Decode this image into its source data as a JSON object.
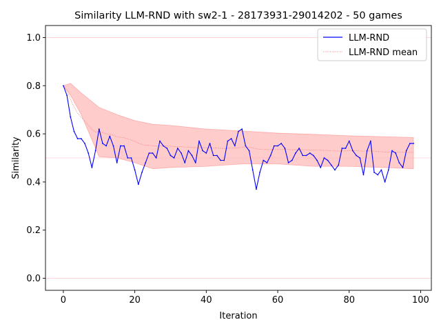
{
  "chart_data": {
    "type": "line",
    "title": "Similarity LLM-RND with sw2-1 - 28173931-29014202 - 50 games",
    "xlabel": "Iteration",
    "ylabel": "Similarity",
    "xlim": [
      -5,
      103
    ],
    "ylim": [
      -0.05,
      1.05
    ],
    "xticks": [
      0,
      20,
      40,
      60,
      80,
      100
    ],
    "yticks": [
      0.0,
      0.2,
      0.4,
      0.6,
      0.8,
      1.0
    ],
    "ytick_labels": [
      "0.0",
      "0.2",
      "0.4",
      "0.6",
      "0.8",
      "1.0"
    ],
    "reference_lines": [
      0.0,
      0.5,
      1.0
    ],
    "legend_position": "top-right",
    "colors": {
      "series": "#0000ff",
      "mean": "#f08080",
      "band": "#ff0000",
      "reference": "#ffb6c1"
    },
    "series": [
      {
        "name": "LLM-RND",
        "x": [
          0,
          1,
          2,
          3,
          4,
          5,
          6,
          7,
          8,
          9,
          10,
          11,
          12,
          13,
          14,
          15,
          16,
          17,
          18,
          19,
          20,
          21,
          22,
          23,
          24,
          25,
          26,
          27,
          28,
          29,
          30,
          31,
          32,
          33,
          34,
          35,
          36,
          37,
          38,
          39,
          40,
          41,
          42,
          43,
          44,
          45,
          46,
          47,
          48,
          49,
          50,
          51,
          52,
          53,
          54,
          55,
          56,
          57,
          58,
          59,
          60,
          61,
          62,
          63,
          64,
          65,
          66,
          67,
          68,
          69,
          70,
          71,
          72,
          73,
          74,
          75,
          76,
          77,
          78,
          79,
          80,
          81,
          82,
          83,
          84,
          85,
          86,
          87,
          88,
          89,
          90,
          91,
          92,
          93,
          94,
          95,
          96,
          97,
          98
        ],
        "values": [
          0.8,
          0.76,
          0.67,
          0.61,
          0.58,
          0.58,
          0.56,
          0.52,
          0.46,
          0.53,
          0.62,
          0.56,
          0.55,
          0.59,
          0.55,
          0.48,
          0.55,
          0.55,
          0.5,
          0.5,
          0.45,
          0.39,
          0.44,
          0.48,
          0.52,
          0.52,
          0.5,
          0.57,
          0.55,
          0.54,
          0.51,
          0.5,
          0.54,
          0.52,
          0.48,
          0.53,
          0.51,
          0.48,
          0.57,
          0.53,
          0.52,
          0.56,
          0.51,
          0.51,
          0.49,
          0.49,
          0.57,
          0.58,
          0.55,
          0.61,
          0.62,
          0.55,
          0.53,
          0.45,
          0.37,
          0.44,
          0.49,
          0.48,
          0.51,
          0.55,
          0.55,
          0.56,
          0.54,
          0.48,
          0.49,
          0.52,
          0.54,
          0.51,
          0.51,
          0.52,
          0.51,
          0.49,
          0.46,
          0.5,
          0.49,
          0.47,
          0.45,
          0.47,
          0.54,
          0.54,
          0.57,
          0.53,
          0.51,
          0.5,
          0.43,
          0.53,
          0.57,
          0.44,
          0.43,
          0.45,
          0.4,
          0.45,
          0.53,
          0.52,
          0.48,
          0.46,
          0.53,
          0.56,
          0.56
        ]
      },
      {
        "name": "LLM-RND mean",
        "x": [
          0,
          1,
          2,
          3,
          4,
          5,
          6,
          7,
          8,
          9,
          10,
          11,
          12,
          13,
          14,
          15,
          16,
          17,
          18,
          19,
          20,
          21,
          22,
          23,
          24,
          25,
          26,
          27,
          28,
          29,
          30,
          31,
          32,
          33,
          34,
          35,
          36,
          37,
          38,
          39,
          40,
          41,
          42,
          43,
          44,
          45,
          46,
          47,
          48,
          49,
          50,
          51,
          52,
          53,
          54,
          55,
          56,
          57,
          58,
          59,
          60,
          61,
          62,
          63,
          64,
          65,
          66,
          67,
          68,
          69,
          70,
          71,
          72,
          73,
          74,
          75,
          76,
          77,
          78,
          79,
          80,
          81,
          82,
          83,
          84,
          85,
          86,
          87,
          88,
          89,
          90,
          91,
          92,
          93,
          94,
          95,
          96,
          97,
          98
        ],
        "values": [
          0.8,
          0.78,
          0.743,
          0.712,
          0.686,
          0.668,
          0.653,
          0.636,
          0.617,
          0.608,
          0.609,
          0.605,
          0.6,
          0.599,
          0.595,
          0.588,
          0.586,
          0.584,
          0.579,
          0.575,
          0.569,
          0.561,
          0.556,
          0.553,
          0.552,
          0.551,
          0.549,
          0.55,
          0.55,
          0.55,
          0.549,
          0.547,
          0.547,
          0.547,
          0.545,
          0.545,
          0.544,
          0.542,
          0.543,
          0.543,
          0.542,
          0.543,
          0.542,
          0.541,
          0.54,
          0.539,
          0.54,
          0.541,
          0.541,
          0.542,
          0.544,
          0.544,
          0.544,
          0.542,
          0.538,
          0.536,
          0.535,
          0.535,
          0.534,
          0.535,
          0.535,
          0.535,
          0.536,
          0.535,
          0.534,
          0.534,
          0.534,
          0.534,
          0.533,
          0.533,
          0.533,
          0.533,
          0.532,
          0.531,
          0.531,
          0.53,
          0.529,
          0.528,
          0.529,
          0.529,
          0.53,
          0.53,
          0.53,
          0.529,
          0.528,
          0.528,
          0.529,
          0.528,
          0.527,
          0.526,
          0.525,
          0.524,
          0.524,
          0.524,
          0.524,
          0.523,
          0.523,
          0.523,
          0.523
        ]
      }
    ],
    "band": {
      "x": [
        0,
        2,
        5,
        10,
        15,
        20,
        25,
        30,
        40,
        50,
        60,
        70,
        80,
        90,
        98
      ],
      "upper": [
        0.8,
        0.81,
        0.77,
        0.71,
        0.68,
        0.655,
        0.64,
        0.635,
        0.62,
        0.612,
        0.603,
        0.598,
        0.592,
        0.588,
        0.585
      ],
      "lower": [
        0.8,
        0.76,
        0.68,
        0.505,
        0.5,
        0.48,
        0.455,
        0.46,
        0.465,
        0.475,
        0.475,
        0.465,
        0.465,
        0.46,
        0.455
      ]
    }
  }
}
